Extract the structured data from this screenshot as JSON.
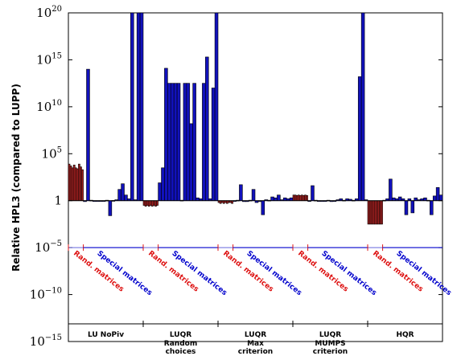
{
  "chart_data": {
    "type": "bar",
    "ylabel": "Relative HPL3 (compared to LUPP)",
    "yscale": "log",
    "ylim_log10": [
      -15,
      20
    ],
    "yticks": [
      {
        "base": "10",
        "exp": "20",
        "log10": 20
      },
      {
        "base": "10",
        "exp": "15",
        "log10": 15
      },
      {
        "base": "10",
        "exp": "10",
        "log10": 10
      },
      {
        "base": "10",
        "exp": "5",
        "log10": 5
      },
      {
        "base": "1",
        "exp": "",
        "log10": 0
      },
      {
        "base": "10",
        "exp": "−5",
        "log10": -5
      },
      {
        "base": "10",
        "exp": "−10",
        "log10": -10
      },
      {
        "base": "10",
        "exp": "−15",
        "log10": -15
      }
    ],
    "separator_level_log10": -5,
    "colors": {
      "random": "#dd1111",
      "special": "#0000cc",
      "separator": "#6666dd",
      "fill_red": "#aa2222",
      "fill_blue": "#1111bb"
    },
    "groups": [
      {
        "name": "LU NoPiv",
        "subtitle": "",
        "random_label": "Rand. matrices",
        "special_label": "Special matrices",
        "random_log10": [
          3.9,
          3.7,
          3.5,
          3.8,
          3.5,
          3.4,
          3.9,
          3.6,
          3.3
        ],
        "special_log10": [
          -0.1,
          14,
          0.05,
          -0.05,
          0,
          0,
          -0.05,
          0.05,
          -1.6,
          0.02,
          0.1,
          1.2,
          1.8,
          0.6,
          0.2,
          20,
          0.1,
          20,
          20
        ]
      },
      {
        "name": "LUQR",
        "subtitle": "Random\nchoices",
        "random_label": "Rand. matrices",
        "special_label": "Special matrices",
        "random_log10": [
          -0.5,
          -0.6,
          -0.5,
          -0.6,
          -0.5,
          -0.6,
          -0.5,
          -0.6,
          -0.5
        ],
        "special_log10": [
          1.9,
          3.5,
          14.1,
          12.5,
          12.5,
          12.5,
          12.5,
          0.05,
          12.5,
          12.5,
          8.2,
          12.5,
          0.3,
          0.2,
          12.5,
          15.3,
          0.2,
          12,
          20
        ]
      },
      {
        "name": "LUQR",
        "subtitle": "Max\ncriterion",
        "random_label": "Rand. matrices",
        "special_label": "Special matrices",
        "random_log10": [
          -0.2,
          -0.3,
          -0.2,
          -0.3,
          -0.2,
          -0.3,
          -0.2,
          -0.2,
          -0.3
        ],
        "special_log10": [
          0,
          0.05,
          1.7,
          -0.1,
          -0.1,
          0.05,
          1.2,
          -0.2,
          -0.1,
          -1.5,
          0.1,
          0.05,
          0.4,
          0.3,
          0.6,
          0.1,
          0.3,
          0.2,
          0.3
        ]
      },
      {
        "name": "LUQR",
        "subtitle": "MUMPS\ncriterion",
        "random_label": "Rand. matrices",
        "special_label": "Special matrices",
        "random_log10": [
          0.6,
          0.6,
          0.55,
          0.6,
          0.55,
          0.6,
          0.55,
          0.6,
          0.55
        ],
        "special_log10": [
          0,
          1.6,
          0.05,
          0,
          0,
          -0.05,
          0.05,
          -0.1,
          0,
          0.1,
          0.2,
          0.05,
          0.2,
          0.15,
          0.05,
          0.2,
          13.2,
          20,
          0.1
        ]
      },
      {
        "name": "HQR",
        "subtitle": "",
        "random_label": "Rand. matrices",
        "special_label": "Special matrices",
        "random_log10": [
          -2.5,
          -2.5,
          -2.5,
          -2.5,
          -2.5,
          -2.5,
          -2.5,
          -2.5,
          -2.5
        ],
        "special_log10": [
          0.05,
          0.2,
          2.3,
          0.3,
          0.2,
          0.4,
          0.2,
          -1.5,
          0.2,
          -1.3,
          0.3,
          0.1,
          0.2,
          0.3,
          0.05,
          -1.5,
          0.5,
          1.4,
          0.6
        ]
      }
    ]
  }
}
